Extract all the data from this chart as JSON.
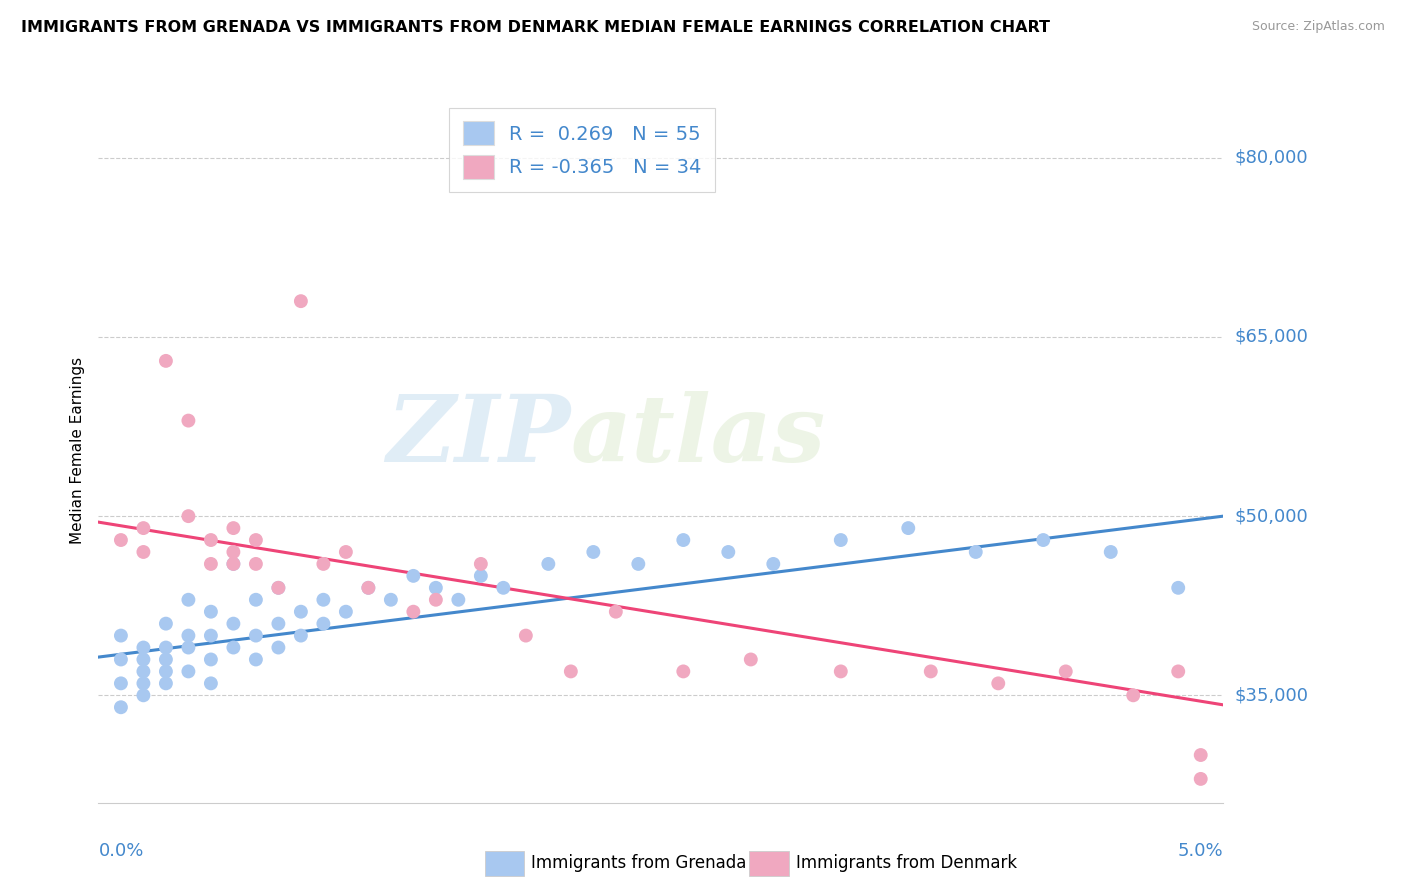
{
  "title": "IMMIGRANTS FROM GRENADA VS IMMIGRANTS FROM DENMARK MEDIAN FEMALE EARNINGS CORRELATION CHART",
  "source": "Source: ZipAtlas.com",
  "ylabel": "Median Female Earnings",
  "ytick_labels": [
    "$35,000",
    "$50,000",
    "$65,000",
    "$80,000"
  ],
  "ytick_values": [
    35000,
    50000,
    65000,
    80000
  ],
  "xlim": [
    0.0,
    0.05
  ],
  "ylim": [
    26000,
    85000
  ],
  "r_grenada": 0.269,
  "n_grenada": 55,
  "r_denmark": -0.365,
  "n_denmark": 34,
  "color_grenada": "#a8c8f0",
  "color_denmark": "#f0a8c0",
  "line_color_grenada": "#4488cc",
  "line_color_denmark": "#ee4477",
  "legend_label_grenada": "Immigrants from Grenada",
  "legend_label_denmark": "Immigrants from Denmark",
  "watermark_zip": "ZIP",
  "watermark_atlas": "atlas",
  "grenada_x": [
    0.001,
    0.001,
    0.001,
    0.001,
    0.002,
    0.002,
    0.002,
    0.002,
    0.002,
    0.003,
    0.003,
    0.003,
    0.003,
    0.003,
    0.004,
    0.004,
    0.004,
    0.004,
    0.005,
    0.005,
    0.005,
    0.005,
    0.006,
    0.006,
    0.006,
    0.007,
    0.007,
    0.007,
    0.008,
    0.008,
    0.008,
    0.009,
    0.009,
    0.01,
    0.01,
    0.011,
    0.012,
    0.013,
    0.014,
    0.015,
    0.016,
    0.017,
    0.018,
    0.02,
    0.022,
    0.024,
    0.026,
    0.028,
    0.03,
    0.033,
    0.036,
    0.039,
    0.042,
    0.045,
    0.048
  ],
  "grenada_y": [
    36000,
    38000,
    40000,
    34000,
    37000,
    39000,
    36000,
    38000,
    35000,
    41000,
    37000,
    39000,
    36000,
    38000,
    40000,
    37000,
    39000,
    43000,
    38000,
    40000,
    42000,
    36000,
    46000,
    39000,
    41000,
    38000,
    40000,
    43000,
    39000,
    41000,
    44000,
    40000,
    42000,
    41000,
    43000,
    42000,
    44000,
    43000,
    45000,
    44000,
    43000,
    45000,
    44000,
    46000,
    47000,
    46000,
    48000,
    47000,
    46000,
    48000,
    49000,
    47000,
    48000,
    47000,
    44000
  ],
  "denmark_x": [
    0.001,
    0.002,
    0.002,
    0.003,
    0.004,
    0.004,
    0.005,
    0.005,
    0.006,
    0.006,
    0.006,
    0.007,
    0.007,
    0.008,
    0.009,
    0.01,
    0.011,
    0.012,
    0.014,
    0.015,
    0.017,
    0.019,
    0.021,
    0.023,
    0.026,
    0.029,
    0.033,
    0.037,
    0.04,
    0.043,
    0.046,
    0.048,
    0.049,
    0.049
  ],
  "denmark_y": [
    48000,
    49000,
    47000,
    63000,
    50000,
    58000,
    46000,
    48000,
    47000,
    49000,
    46000,
    48000,
    46000,
    44000,
    68000,
    46000,
    47000,
    44000,
    42000,
    43000,
    46000,
    40000,
    37000,
    42000,
    37000,
    38000,
    37000,
    37000,
    36000,
    37000,
    35000,
    37000,
    28000,
    30000
  ],
  "line_grenada_x0": 0.0,
  "line_grenada_y0": 38200,
  "line_grenada_x1": 0.05,
  "line_grenada_y1": 50000,
  "line_denmark_x0": 0.0,
  "line_denmark_y0": 49500,
  "line_denmark_x1": 0.05,
  "line_denmark_y1": 34200
}
